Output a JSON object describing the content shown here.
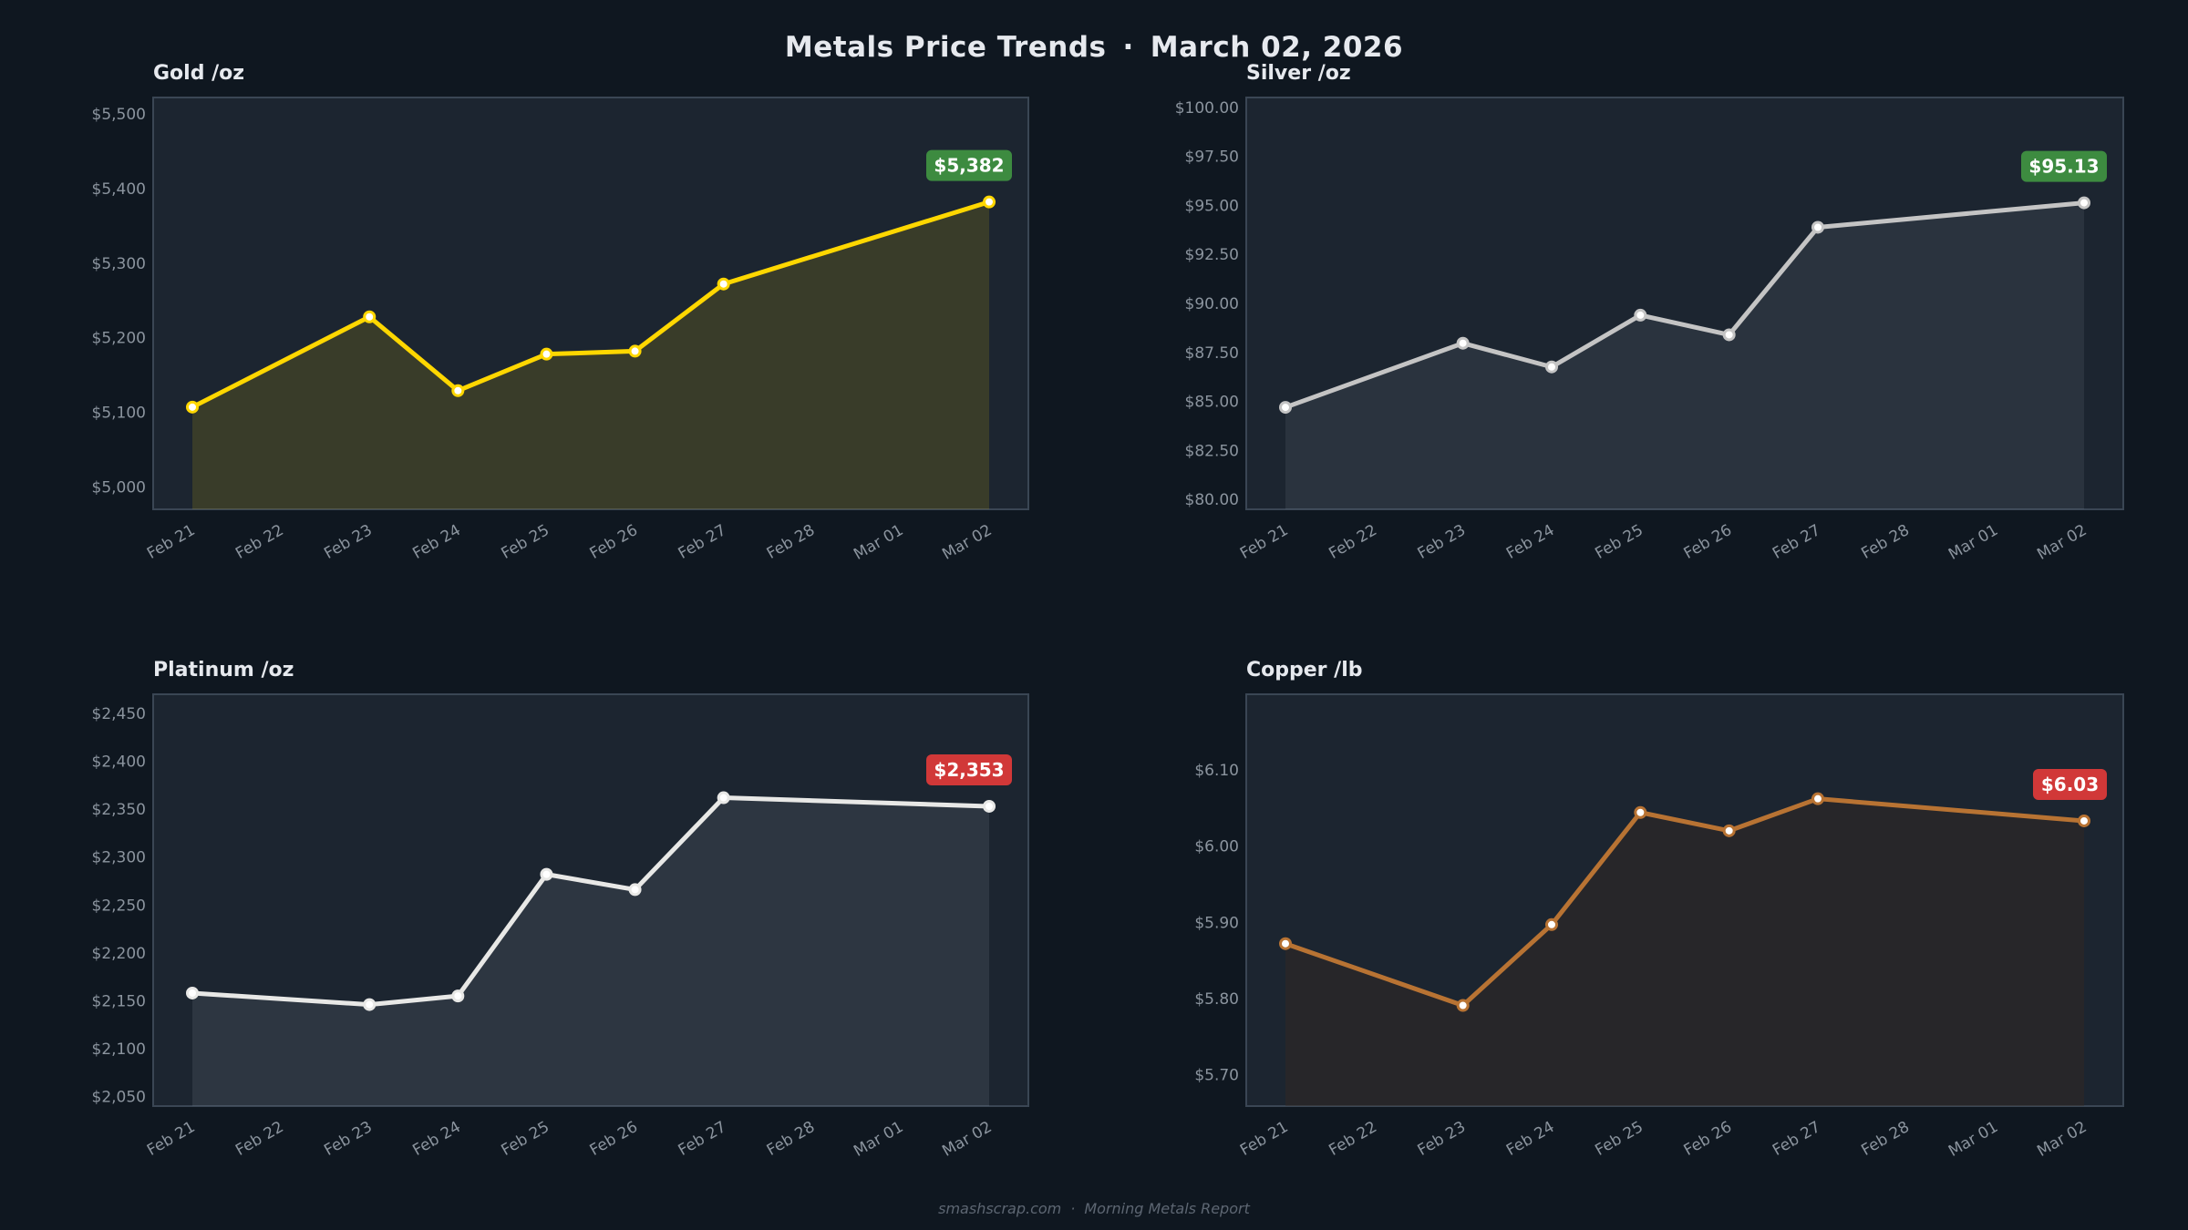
{
  "header": {
    "title": "Metals Price Trends",
    "separator": "·",
    "date": "March 02, 2026"
  },
  "footer": {
    "site": "smashscrap.com",
    "separator": "·",
    "report": "Morning Metals Report"
  },
  "colors": {
    "background": "#0f1720",
    "plot_background": "#1c2530",
    "border": "#3a4654",
    "badge_up": "#3d8b40",
    "badge_down": "#d13838"
  },
  "chart_data": [
    {
      "type": "line",
      "title": "Gold  /oz",
      "color": "#ffd700",
      "fill": "rgba(255,215,0,0.13)",
      "categories": [
        "Feb 21",
        "Feb 22",
        "Feb 23",
        "Feb 24",
        "Feb 25",
        "Feb 26",
        "Feb 27",
        "Feb 28",
        "Mar 01",
        "Mar 02"
      ],
      "x": [
        "Feb 21",
        "Feb 23",
        "Feb 24",
        "Feb 25",
        "Feb 26",
        "Feb 27",
        "Mar 02"
      ],
      "y": [
        5107,
        5228,
        5129,
        5178,
        5182,
        5272,
        5382
      ],
      "ylim": [
        4970,
        5522
      ],
      "yticks": [
        {
          "v": 5000,
          "label": "$5,000"
        },
        {
          "v": 5100,
          "label": "$5,100"
        },
        {
          "v": 5200,
          "label": "$5,200"
        },
        {
          "v": 5300,
          "label": "$5,300"
        },
        {
          "v": 5400,
          "label": "$5,400"
        },
        {
          "v": 5500,
          "label": "$5,500"
        }
      ],
      "badge": {
        "label": "$5,382",
        "direction": "up"
      }
    },
    {
      "type": "line",
      "title": "Silver  /oz",
      "color": "#c4c4c4",
      "fill": "rgba(192,200,210,0.09)",
      "categories": [
        "Feb 21",
        "Feb 22",
        "Feb 23",
        "Feb 24",
        "Feb 25",
        "Feb 26",
        "Feb 27",
        "Feb 28",
        "Mar 01",
        "Mar 02"
      ],
      "x": [
        "Feb 21",
        "Feb 23",
        "Feb 24",
        "Feb 25",
        "Feb 26",
        "Feb 27",
        "Mar 02"
      ],
      "y": [
        84.7,
        87.97,
        86.76,
        89.4,
        88.4,
        93.88,
        95.13
      ],
      "ylim": [
        79.5,
        100.5
      ],
      "yticks": [
        {
          "v": 80,
          "label": "$80.00"
        },
        {
          "v": 82.5,
          "label": "$82.50"
        },
        {
          "v": 85,
          "label": "$85.00"
        },
        {
          "v": 87.5,
          "label": "$87.50"
        },
        {
          "v": 90,
          "label": "$90.00"
        },
        {
          "v": 92.5,
          "label": "$92.50"
        },
        {
          "v": 95,
          "label": "$95.00"
        },
        {
          "v": 97.5,
          "label": "$97.50"
        },
        {
          "v": 100,
          "label": "$100.00"
        }
      ],
      "badge": {
        "label": "$95.13",
        "direction": "up"
      }
    },
    {
      "type": "line",
      "title": "Platinum  /oz",
      "color": "#e8e8e6",
      "fill": "rgba(200,210,220,0.10)",
      "categories": [
        "Feb 21",
        "Feb 22",
        "Feb 23",
        "Feb 24",
        "Feb 25",
        "Feb 26",
        "Feb 27",
        "Feb 28",
        "Mar 01",
        "Mar 02"
      ],
      "x": [
        "Feb 21",
        "Feb 23",
        "Feb 24",
        "Feb 25",
        "Feb 26",
        "Feb 27",
        "Mar 02"
      ],
      "y": [
        2158,
        2146,
        2155,
        2282,
        2266,
        2362,
        2353
      ],
      "ylim": [
        2040,
        2470
      ],
      "yticks": [
        {
          "v": 2050,
          "label": "$2,050"
        },
        {
          "v": 2100,
          "label": "$2,100"
        },
        {
          "v": 2150,
          "label": "$2,150"
        },
        {
          "v": 2200,
          "label": "$2,200"
        },
        {
          "v": 2250,
          "label": "$2,250"
        },
        {
          "v": 2300,
          "label": "$2,300"
        },
        {
          "v": 2350,
          "label": "$2,350"
        },
        {
          "v": 2400,
          "label": "$2,400"
        },
        {
          "v": 2450,
          "label": "$2,450"
        }
      ],
      "badge": {
        "label": "$2,353",
        "direction": "down"
      }
    },
    {
      "type": "line",
      "title": "Copper  /lb",
      "color": "#b87333",
      "fill": "rgba(60,40,30,0.35)",
      "categories": [
        "Feb 21",
        "Feb 22",
        "Feb 23",
        "Feb 24",
        "Feb 25",
        "Feb 26",
        "Feb 27",
        "Feb 28",
        "Mar 01",
        "Mar 02"
      ],
      "x": [
        "Feb 21",
        "Feb 23",
        "Feb 24",
        "Feb 25",
        "Feb 26",
        "Feb 27",
        "Mar 02"
      ],
      "y": [
        5.872,
        5.791,
        5.897,
        6.044,
        6.02,
        6.062,
        6.033
      ],
      "ylim": [
        5.659,
        6.199
      ],
      "yticks": [
        {
          "v": 5.7,
          "label": "$5.70"
        },
        {
          "v": 5.8,
          "label": "$5.80"
        },
        {
          "v": 5.9,
          "label": "$5.90"
        },
        {
          "v": 6.0,
          "label": "$6.00"
        },
        {
          "v": 6.1,
          "label": "$6.10"
        }
      ],
      "badge": {
        "label": "$6.03",
        "direction": "down"
      }
    }
  ]
}
